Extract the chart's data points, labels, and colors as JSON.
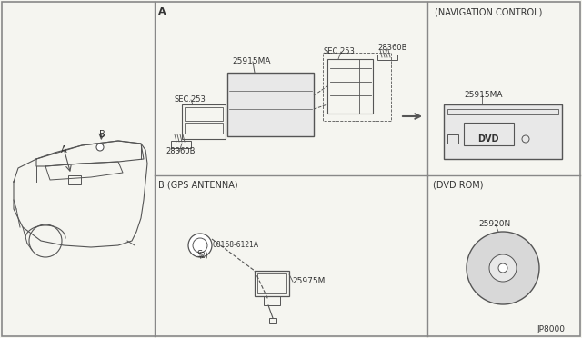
{
  "bg_color": "#f5f5f0",
  "line_color": "#555555",
  "border_color": "#888888",
  "text_color": "#333333",
  "title_nav": "(NAVIGATION CONTROL)",
  "title_dvd": "(DVD ROM)",
  "title_gps": "B (GPS ANTENNA)",
  "label_a": "A",
  "label_b": "B",
  "part_25915MA": "25915MA",
  "part_28360B_1": "28360B",
  "part_28360B_2": "28360B",
  "part_SEC253_1": "SEC.253",
  "part_SEC253_2": "SEC.253",
  "part_25975M": "25975M",
  "part_25920N": "25920N",
  "part_08168": "08168-6121A",
  "part_08168_note": "(2)",
  "footer": "JP8000"
}
